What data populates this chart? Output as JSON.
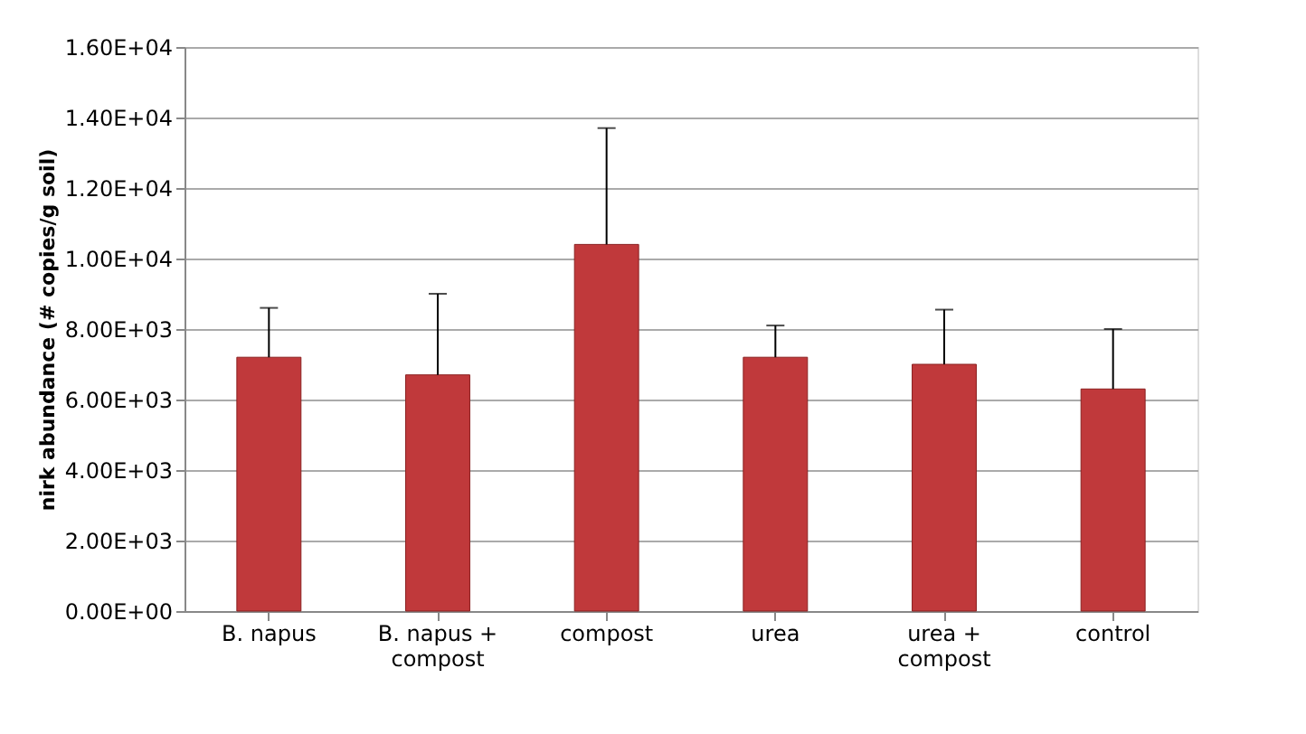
{
  "chart_data": {
    "type": "bar",
    "ylabel": "nirk abundance (# copies/g soil)",
    "categories": [
      "B. napus",
      "B. napus + compost",
      "compost",
      "urea",
      "urea + compost",
      "control"
    ],
    "values": [
      7200,
      6700,
      10400,
      7200,
      7000,
      6300
    ],
    "errors": [
      [
        7200,
        8600
      ],
      [
        6700,
        9000
      ],
      [
        10400,
        13700
      ],
      [
        7200,
        8100
      ],
      [
        7000,
        8550
      ],
      [
        6300,
        8000
      ]
    ],
    "color": "#c0393b",
    "ylim": [
      0,
      16000
    ],
    "yticks": [
      {
        "value": 0,
        "label": "0.00E+00"
      },
      {
        "value": 2000,
        "label": "2.00E+03"
      },
      {
        "value": 4000,
        "label": "4.00E+03"
      },
      {
        "value": 6000,
        "label": "6.00E+03"
      },
      {
        "value": 8000,
        "label": "8.00E+03"
      },
      {
        "value": 10000,
        "label": "1.00E+04"
      },
      {
        "value": 12000,
        "label": "1.20E+04"
      },
      {
        "value": 14000,
        "label": "1.40E+04"
      },
      {
        "value": 16000,
        "label": "1.60E+04"
      }
    ],
    "grid": "y"
  }
}
